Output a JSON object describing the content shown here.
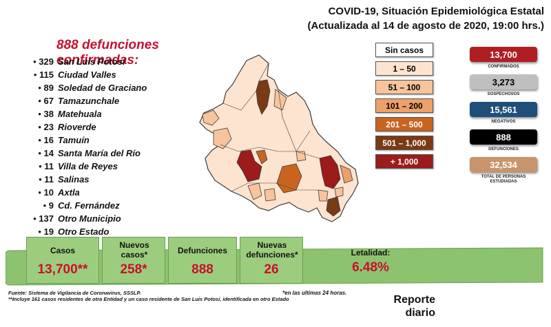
{
  "header": {
    "line1": "COVID-19, Situación Epidemiológica Estatal",
    "line2": "(Actualizada al 14 de agosto de 2020, 19:00 hrs.)"
  },
  "deaths_title": "888 defunciones confirmadas:",
  "municipalities": [
    {
      "count": "329",
      "name": "San Luis Potosí"
    },
    {
      "count": "115",
      "name": "Ciudad Valles"
    },
    {
      "count": "89",
      "name": "Soledad de Graciano"
    },
    {
      "count": "67",
      "name": "Tamazunchale"
    },
    {
      "count": "38",
      "name": "Matehuala"
    },
    {
      "count": "23",
      "name": "Rioverde"
    },
    {
      "count": "16",
      "name": "Tamuín"
    },
    {
      "count": "14",
      "name": "Santa María del Río"
    },
    {
      "count": "11",
      "name": "Villa de Reyes"
    },
    {
      "count": "11",
      "name": "Salinas"
    },
    {
      "count": "10",
      "name": "Axtla"
    },
    {
      "count": "9",
      "name": "Cd. Fernández"
    },
    {
      "count": "137",
      "name": "Otro Municipio"
    },
    {
      "count": "19",
      "name": "Otro Estado"
    }
  ],
  "legend": [
    {
      "label": "Sin casos",
      "color": "#ffffff",
      "text_color": "#000000"
    },
    {
      "label": "1 – 50",
      "color": "#fde4d0",
      "text_color": "#000000"
    },
    {
      "label": "51 – 100",
      "color": "#f8c49c",
      "text_color": "#000000"
    },
    {
      "label": "101 – 200",
      "color": "#eda069",
      "text_color": "#000000"
    },
    {
      "label": "201 – 500",
      "color": "#c9641f",
      "text_color": "#ffffff"
    },
    {
      "label": "501 – 1,000",
      "color": "#7a3a13",
      "text_color": "#ffffff"
    },
    {
      "label": "+ 1,000",
      "color": "#9c1b1b",
      "text_color": "#ffffff"
    }
  ],
  "stats": [
    {
      "value": "13,700",
      "label": "CONFIRMADOS",
      "color": "#b01e23"
    },
    {
      "value": "3,273",
      "label": "SOSPECHOSOS",
      "color": "#bfbfbf"
    },
    {
      "value": "15,561",
      "label": "NEGATIVOS",
      "color": "#1f4e79"
    },
    {
      "value": "888",
      "label": "DEFUNCIONES",
      "color": "#000000"
    },
    {
      "value": "32,534",
      "label": "TOTAL DE PERSONAS ESTUDIADAS",
      "color": "#c8956a"
    }
  ],
  "bottom": {
    "casos": {
      "label": "Casos",
      "value": "13,700**"
    },
    "nuevos_casos": {
      "label": "Nuevos casos*",
      "value": "258*"
    },
    "defunciones": {
      "label": "Defunciones",
      "value": "888"
    },
    "nuevas_defunciones": {
      "label": "Nuevas defunciones*",
      "value": "26"
    },
    "letalidad": {
      "label": "Letalidad:",
      "value": "6.48%"
    }
  },
  "footnotes": {
    "source": "Fuente: Sistema de Vigilancia de Coronavirus, SSSLP.",
    "note2": "**Incluye 161 casos residentes de otra Entidad y un caso residente de San Luis Potosí, identificada en otro Estado",
    "note1": "*en las ultimas 24 horas."
  },
  "report": {
    "line1": "Reporte",
    "line2": "diario"
  },
  "map_colors": {
    "base": "#fde4d0",
    "light": "#f8c49c",
    "mid": "#eda069",
    "dark": "#c9641f",
    "darker": "#7a3a13",
    "top": "#9c1b1b",
    "stroke": "#3a3a3a"
  }
}
